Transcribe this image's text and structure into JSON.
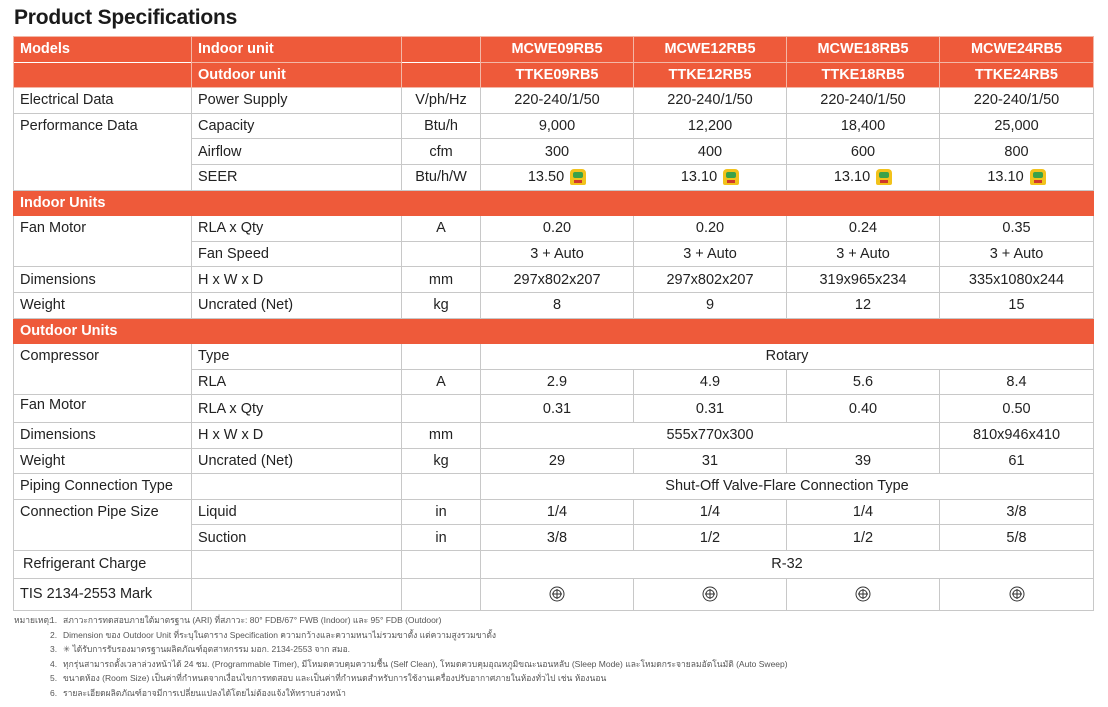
{
  "title": "Product Specifications",
  "header": {
    "models": "Models",
    "indoor_unit": "Indoor unit",
    "outdoor_unit": "Outdoor unit",
    "indoor_models": [
      "MCWE09RB5",
      "MCWE12RB5",
      "MCWE18RB5",
      "MCWE24RB5"
    ],
    "outdoor_models": [
      "TTKE09RB5",
      "TTKE12RB5",
      "TTKE18RB5",
      "TTKE24RB5"
    ]
  },
  "rows": {
    "electrical": {
      "group": "Electrical Data",
      "item": "Power Supply",
      "unit": "V/ph/Hz",
      "values": [
        "220-240/1/50",
        "220-240/1/50",
        "220-240/1/50",
        "220-240/1/50"
      ]
    },
    "capacity": {
      "group": "Performance Data",
      "item": "Capacity",
      "unit": "Btu/h",
      "values": [
        "9,000",
        "12,200",
        "18,400",
        "25,000"
      ]
    },
    "airflow": {
      "item": "Airflow",
      "unit": "cfm",
      "values": [
        "300",
        "400",
        "600",
        "800"
      ]
    },
    "seer": {
      "item": "SEER",
      "unit": "Btu/h/W",
      "values": [
        "13.50",
        "13.10",
        "13.10",
        "13.10"
      ]
    },
    "indoor_section": "Indoor Units",
    "fan_rla": {
      "group": "Fan  Motor",
      "item": "RLA x Qty",
      "unit": "A",
      "values": [
        "0.20",
        "0.20",
        "0.24",
        "0.35"
      ]
    },
    "fan_speed": {
      "item": "Fan Speed",
      "unit": "",
      "values": [
        "3 + Auto",
        "3 + Auto",
        "3 + Auto",
        "3 + Auto"
      ]
    },
    "in_dim": {
      "group": "Dimensions",
      "item": "H x W x D",
      "unit": "mm",
      "values": [
        "297x802x207",
        "297x802x207",
        "319x965x234",
        "335x1080x244"
      ]
    },
    "in_weight": {
      "group": "Weight",
      "item": "Uncrated (Net)",
      "unit": "kg",
      "values": [
        "8",
        "9",
        "12",
        "15"
      ]
    },
    "outdoor_section": "Outdoor Units",
    "comp_type": {
      "group": "Compressor",
      "item": "Type",
      "unit": "",
      "value": "Rotary"
    },
    "comp_rla": {
      "item": "RLA",
      "unit": "A",
      "values": [
        "2.9",
        "4.9",
        "5.6",
        "8.4"
      ]
    },
    "out_fan": {
      "group": "Fan Motor",
      "item": "RLA x Qty",
      "unit": "",
      "values": [
        "0.31",
        "0.31",
        "0.40",
        "0.50"
      ]
    },
    "out_dim": {
      "group": "Dimensions",
      "item": "H x W x D",
      "unit": "mm",
      "value_a": "555x770x300",
      "value_b": "810x946x410"
    },
    "out_weight": {
      "group": "Weight",
      "item": "Uncrated (Net)",
      "unit": "kg",
      "values": [
        "29",
        "31",
        "39",
        "61"
      ]
    },
    "piping": {
      "group": "Piping Connection Type",
      "value": "Shut-Off Valve-Flare Connection Type"
    },
    "liquid": {
      "group": "Connection Pipe Size",
      "item": "Liquid",
      "unit": "in",
      "values": [
        "1/4",
        "1/4",
        "1/4",
        "3/8"
      ]
    },
    "suction": {
      "item": "Suction",
      "unit": "in",
      "values": [
        "3/8",
        "1/2",
        "1/2",
        "5/8"
      ]
    },
    "refrigerant": {
      "group": "Refrigerant Charge",
      "value": "R-32"
    },
    "tis": {
      "group": "TIS 2134-2553 Mark"
    }
  },
  "notes": {
    "label": "หมายเหตุ:",
    "items": [
      {
        "n": "1.",
        "text": "สภาวะการทดสอบภายใต้มาตรฐาน (ARI) ที่สภาวะ: 80° FDB/67° FWB (Indoor) และ 95° FDB (Outdoor)"
      },
      {
        "n": "2.",
        "text": "Dimension ของ Outdoor Unit ที่ระบุในตาราง Specification ความกว้างและความหนาไม่รวมขาตั้ง แต่ความสูงรวมขาตั้ง"
      },
      {
        "n": "3.",
        "text": "✳ ได้รับการรับรองมาตรฐานผลิตภัณฑ์อุตสาหกรรม มอก. 2134-2553 จาก สมอ."
      },
      {
        "n": "4.",
        "text": "ทุกรุ่นสามารถตั้งเวลาล่วงหน้าได้ 24 ชม. (Programmable Timer), มีโหมดควบคุมความชื้น (Self Clean), โหมดควบคุมอุณหภูมิขณะนอนหลับ (Sleep Mode) และโหมดกระจายลมอัตโนมัติ (Auto Sweep)"
      },
      {
        "n": "5.",
        "text": "ขนาดห้อง (Room Size) เป็นค่าที่กำหนดจากเงื่อนไขการทดสอบ และเป็นค่าที่กำหนดสำหรับการใช้งานเครื่องปรับอากาศภายในห้องทั่วไป เช่น ห้องนอน"
      },
      {
        "n": "6.",
        "text": "รายละเอียดผลิตภัณฑ์อาจมีการเปลี่ยนแปลงได้โดยไม่ต้องแจ้งให้ทราบล่วงหน้า"
      }
    ]
  },
  "colors": {
    "accent": "#ee5a3a",
    "border": "#c8c8c8"
  }
}
